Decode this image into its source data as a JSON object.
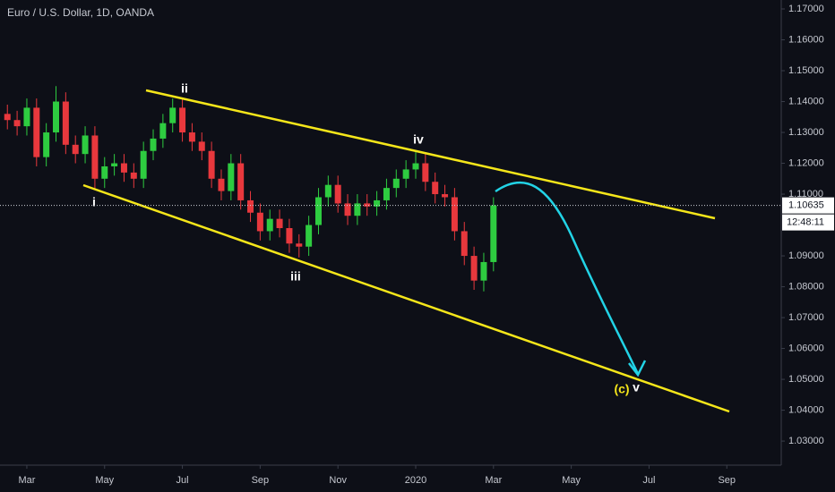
{
  "chart_data": {
    "type": "candlestick",
    "title": "Euro / U.S. Dollar, 1D, OANDA",
    "x": [
      1.5,
      1.75,
      2,
      2.25,
      2.5,
      2.75,
      3,
      3.25,
      3.5,
      3.75,
      4,
      4.25,
      4.5,
      4.75,
      5,
      5.25,
      5.5,
      5.75,
      6,
      6.25,
      6.5,
      6.75,
      7,
      7.25,
      7.5,
      7.75,
      8,
      8.25,
      8.5,
      8.75,
      9,
      9.25,
      9.5,
      9.75,
      10,
      10.25,
      10.5,
      10.75,
      11,
      11.25,
      11.5,
      11.75,
      12,
      12.25,
      12.5,
      12.75,
      13,
      13.25,
      13.5,
      13.75,
      14
    ],
    "open": [
      1.136,
      1.134,
      1.132,
      1.138,
      1.122,
      1.13,
      1.14,
      1.126,
      1.123,
      1.129,
      1.115,
      1.119,
      1.12,
      1.117,
      1.115,
      1.124,
      1.128,
      1.133,
      1.138,
      1.13,
      1.127,
      1.124,
      1.115,
      1.111,
      1.12,
      1.108,
      1.104,
      1.098,
      1.102,
      1.099,
      1.094,
      1.093,
      1.1,
      1.109,
      1.113,
      1.107,
      1.103,
      1.107,
      1.106,
      1.108,
      1.112,
      1.115,
      1.118,
      1.12,
      1.114,
      1.11,
      1.109,
      1.098,
      1.09,
      1.082,
      1.088
    ],
    "high": [
      1.139,
      1.137,
      1.141,
      1.141,
      1.133,
      1.145,
      1.143,
      1.129,
      1.132,
      1.132,
      1.122,
      1.123,
      1.123,
      1.12,
      1.127,
      1.131,
      1.136,
      1.141,
      1.141,
      1.133,
      1.13,
      1.127,
      1.118,
      1.123,
      1.123,
      1.111,
      1.107,
      1.105,
      1.105,
      1.102,
      1.097,
      1.103,
      1.112,
      1.116,
      1.116,
      1.11,
      1.11,
      1.11,
      1.111,
      1.115,
      1.118,
      1.121,
      1.124,
      1.123,
      1.117,
      1.113,
      1.112,
      1.101,
      1.093,
      1.091,
      1.109
    ],
    "low": [
      1.131,
      1.129,
      1.129,
      1.119,
      1.119,
      1.127,
      1.123,
      1.12,
      1.12,
      1.1115,
      1.112,
      1.116,
      1.114,
      1.112,
      1.112,
      1.121,
      1.125,
      1.13,
      1.127,
      1.124,
      1.121,
      1.112,
      1.108,
      1.108,
      1.105,
      1.101,
      1.095,
      1.095,
      1.096,
      1.091,
      1.0895,
      1.09,
      1.097,
      1.106,
      1.104,
      1.1,
      1.1,
      1.103,
      1.103,
      1.105,
      1.109,
      1.112,
      1.115,
      1.111,
      1.107,
      1.106,
      1.095,
      1.087,
      1.079,
      1.0785,
      1.085
    ],
    "close": [
      1.134,
      1.132,
      1.138,
      1.122,
      1.13,
      1.14,
      1.126,
      1.123,
      1.129,
      1.115,
      1.119,
      1.12,
      1.117,
      1.115,
      1.124,
      1.128,
      1.133,
      1.138,
      1.13,
      1.127,
      1.124,
      1.115,
      1.111,
      1.12,
      1.108,
      1.104,
      1.098,
      1.102,
      1.099,
      1.094,
      1.093,
      1.1,
      1.109,
      1.113,
      1.107,
      1.103,
      1.107,
      1.106,
      1.108,
      1.112,
      1.115,
      1.118,
      1.12,
      1.114,
      1.11,
      1.109,
      1.098,
      1.09,
      1.082,
      1.088,
      1.10635
    ],
    "up_color": "#2ecc40",
    "down_color": "#e8383d",
    "xlim": [
      1.31,
      21.4
    ],
    "ylim": [
      1.0222,
      1.1729
    ],
    "xticks": [
      {
        "value": 2,
        "label": "Mar"
      },
      {
        "value": 4,
        "label": "May"
      },
      {
        "value": 6,
        "label": "Jul"
      },
      {
        "value": 8,
        "label": "Sep"
      },
      {
        "value": 10,
        "label": "Nov"
      },
      {
        "value": 12,
        "label": "2020"
      },
      {
        "value": 14,
        "label": "Mar"
      },
      {
        "value": 16,
        "label": "May"
      },
      {
        "value": 18,
        "label": "Jul"
      },
      {
        "value": 20,
        "label": "Sep"
      }
    ],
    "yticks": [
      {
        "value": 1.17,
        "label": "1.17000"
      },
      {
        "value": 1.16,
        "label": "1.16000"
      },
      {
        "value": 1.15,
        "label": "1.15000"
      },
      {
        "value": 1.14,
        "label": "1.14000"
      },
      {
        "value": 1.13,
        "label": "1.13000"
      },
      {
        "value": 1.12,
        "label": "1.12000"
      },
      {
        "value": 1.11,
        "label": "1.11000"
      },
      {
        "value": 1.09,
        "label": "1.09000"
      },
      {
        "value": 1.08,
        "label": "1.08000"
      },
      {
        "value": 1.07,
        "label": "1.07000"
      },
      {
        "value": 1.06,
        "label": "1.06000"
      },
      {
        "value": 1.05,
        "label": "1.05000"
      },
      {
        "value": 1.04,
        "label": "1.04000"
      },
      {
        "value": 1.03,
        "label": "1.03000"
      }
    ],
    "last_price": {
      "value": 1.10635,
      "label": "1.10635"
    },
    "countdown": "12:48:11",
    "annotations": [
      "i",
      "ii",
      "iii",
      "iv",
      "(c)",
      "v"
    ]
  }
}
